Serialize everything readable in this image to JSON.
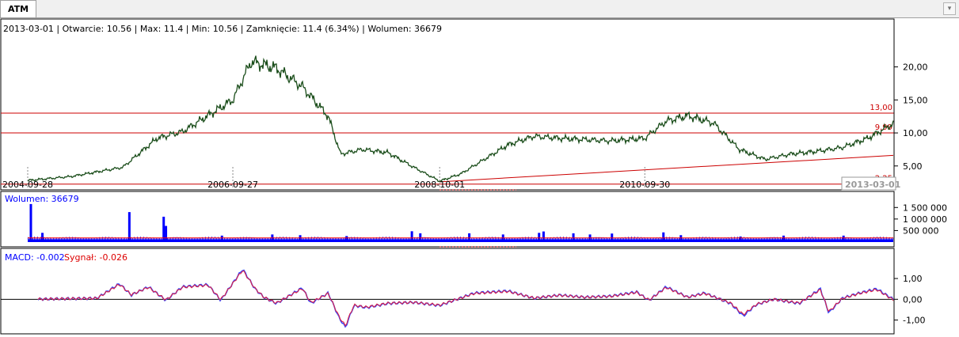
{
  "tab": {
    "label": "ATM"
  },
  "info": {
    "text": "2013-03-01 | Otwarcie: 10.56 | Max: 11.4 | Min: 10.56 | Zamknięcie: 11.4 (6.34%)  | Wolumen: 36679"
  },
  "cursor_date": "2013-03-01",
  "colors": {
    "price": "#1a4d1a",
    "level": "#cc0000",
    "volume": "#0000ff",
    "macd": "#3344ff",
    "signal": "#dd2244"
  },
  "chart_data": [
    {
      "type": "line",
      "x": [
        "2004-09-28",
        "2005-03-01",
        "2005-09-01",
        "2006-01-01",
        "2006-04-01",
        "2006-09-27",
        "2006-12-01",
        "2007-03-01",
        "2007-06-01",
        "2007-09-01",
        "2007-10-15",
        "2008-01-01",
        "2008-04-01",
        "2008-07-01",
        "2008-10-01",
        "2008-12-15",
        "2009-03-01",
        "2009-06-01",
        "2009-09-01",
        "2009-12-01",
        "2010-03-01",
        "2010-06-01",
        "2010-09-30",
        "2010-12-15",
        "2011-03-01",
        "2011-06-01",
        "2011-09-01",
        "2011-12-01",
        "2012-03-01",
        "2012-06-01",
        "2012-09-01",
        "2012-12-01",
        "2013-03-01"
      ],
      "y": [
        2.8,
        3.4,
        4.8,
        9.2,
        10.2,
        15.0,
        20.8,
        19.8,
        17.0,
        12.5,
        6.8,
        7.5,
        7.0,
        4.8,
        2.7,
        3.8,
        5.8,
        8.2,
        9.5,
        9.2,
        9.0,
        8.8,
        9.2,
        11.8,
        12.6,
        11.5,
        7.5,
        6.0,
        6.8,
        7.2,
        7.8,
        9.2,
        11.4
      ],
      "levels": [
        {
          "value": 13.0,
          "label": "13,00"
        },
        {
          "value": 10.0,
          "label": "9,99"
        },
        {
          "value": 2.25,
          "label": "2,25"
        }
      ],
      "trendline": {
        "x": [
          "2008-10-01",
          "2013-03-01"
        ],
        "y": [
          2.6,
          6.6
        ]
      },
      "x_ticks": [
        "2004-09-28",
        "2006-09-27",
        "2008-10-01",
        "2010-09-30"
      ],
      "y_ticks": [
        "5,00",
        "10,00",
        "15,00",
        "20,00"
      ],
      "y_tick_values": [
        5,
        10,
        15,
        20
      ],
      "ylim": [
        1.5,
        24.5
      ]
    },
    {
      "type": "bar",
      "title": "Wolumen: 36679",
      "y_ticks": [
        "500 000",
        "1 000 000",
        "1 500 000"
      ],
      "y_tick_values": [
        500000,
        1000000,
        1500000
      ],
      "ylim": [
        0,
        1750000
      ],
      "baseline": 120000,
      "average_level": 60000,
      "spikes": [
        {
          "x": "2004-10-05",
          "y": 1650000
        },
        {
          "x": "2004-11-15",
          "y": 400000
        },
        {
          "x": "2005-09-20",
          "y": 1300000
        },
        {
          "x": "2006-01-20",
          "y": 1100000
        },
        {
          "x": "2006-01-28",
          "y": 700000
        },
        {
          "x": "2006-08-15",
          "y": 280000
        },
        {
          "x": "2007-02-10",
          "y": 330000
        },
        {
          "x": "2007-05-20",
          "y": 300000
        },
        {
          "x": "2007-11-01",
          "y": 260000
        },
        {
          "x": "2008-06-20",
          "y": 470000
        },
        {
          "x": "2008-07-20",
          "y": 380000
        },
        {
          "x": "2009-01-10",
          "y": 380000
        },
        {
          "x": "2009-05-10",
          "y": 330000
        },
        {
          "x": "2009-09-15",
          "y": 400000
        },
        {
          "x": "2009-10-01",
          "y": 460000
        },
        {
          "x": "2010-01-15",
          "y": 380000
        },
        {
          "x": "2010-03-15",
          "y": 330000
        },
        {
          "x": "2010-06-01",
          "y": 370000
        },
        {
          "x": "2010-12-01",
          "y": 420000
        },
        {
          "x": "2011-02-01",
          "y": 300000
        },
        {
          "x": "2011-09-01",
          "y": 240000
        },
        {
          "x": "2012-02-01",
          "y": 280000
        },
        {
          "x": "2012-09-01",
          "y": 280000
        }
      ]
    },
    {
      "type": "line",
      "title_macd": "MACD: -0.002",
      "title_signal": "Sygnał: -0.026",
      "x": [
        "2004-09-28",
        "2005-06-01",
        "2005-08-20",
        "2005-10-01",
        "2005-12-01",
        "2006-02-01",
        "2006-04-01",
        "2006-07-01",
        "2006-08-15",
        "2006-11-01",
        "2006-12-15",
        "2007-01-15",
        "2007-03-01",
        "2007-06-01",
        "2007-07-01",
        "2007-09-01",
        "2007-10-10",
        "2007-11-01",
        "2007-12-01",
        "2008-01-15",
        "2008-04-01",
        "2008-07-01",
        "2008-10-01",
        "2009-02-01",
        "2009-06-01",
        "2009-09-01",
        "2009-12-01",
        "2010-03-01",
        "2010-06-01",
        "2010-09-01",
        "2010-10-15",
        "2010-12-15",
        "2011-03-01",
        "2011-05-01",
        "2011-08-01",
        "2011-09-15",
        "2011-11-01",
        "2012-01-01",
        "2012-04-01",
        "2012-06-15",
        "2012-07-15",
        "2012-09-01",
        "2012-11-01",
        "2013-01-01",
        "2013-03-01"
      ],
      "macd": [
        0.0,
        0.05,
        0.75,
        0.2,
        0.6,
        -0.05,
        0.6,
        0.7,
        -0.05,
        1.45,
        0.5,
        0.1,
        -0.2,
        0.55,
        -0.2,
        0.3,
        -0.9,
        -1.35,
        -0.3,
        -0.4,
        -0.2,
        -0.15,
        -0.3,
        0.3,
        0.4,
        0.05,
        0.2,
        0.1,
        0.15,
        0.35,
        -0.05,
        0.6,
        0.1,
        0.3,
        -0.2,
        -0.8,
        -0.25,
        0.0,
        -0.2,
        0.5,
        -0.65,
        0.05,
        0.3,
        0.5,
        -0.002
      ],
      "signal": [
        0.0,
        0.05,
        0.72,
        0.22,
        0.58,
        -0.03,
        0.58,
        0.68,
        -0.02,
        1.4,
        0.52,
        0.1,
        -0.18,
        0.52,
        -0.16,
        0.28,
        -0.85,
        -1.28,
        -0.28,
        -0.38,
        -0.19,
        -0.15,
        -0.28,
        0.28,
        0.38,
        0.06,
        0.19,
        0.1,
        0.14,
        0.33,
        -0.04,
        0.57,
        0.1,
        0.28,
        -0.18,
        -0.74,
        -0.24,
        0.0,
        -0.18,
        0.46,
        -0.6,
        0.04,
        0.28,
        0.47,
        -0.026
      ],
      "y_ticks": [
        "-1,00",
        "0,00",
        "1,00"
      ],
      "y_tick_values": [
        -1,
        0,
        1
      ],
      "ylim": [
        -1.55,
        1.65
      ]
    }
  ]
}
